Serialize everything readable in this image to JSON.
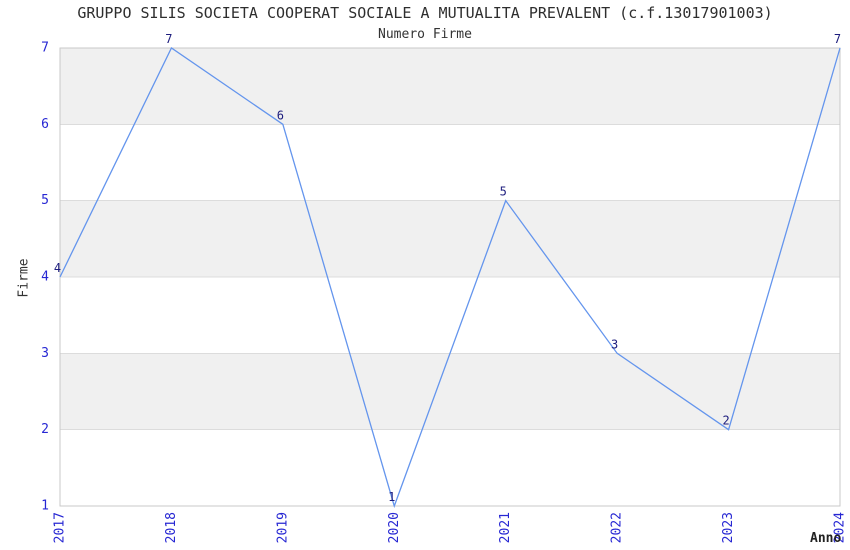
{
  "chart_data": {
    "type": "line",
    "title": "GRUPPO SILIS SOCIETA COOPERAT SOCIALE A MUTUALITA PREVALENT (c.f.13017901003)",
    "subtitle": "Numero Firme",
    "xlabel": "Anno",
    "ylabel": "Firme",
    "x": [
      "2017",
      "2018",
      "2019",
      "2020",
      "2021",
      "2022",
      "2023",
      "2024"
    ],
    "series": [
      {
        "name": "Numero Firme",
        "values": [
          4,
          7,
          6,
          1,
          5,
          3,
          2,
          7
        ]
      }
    ],
    "point_labels": [
      "4",
      "7",
      "6",
      "1",
      "5",
      "3",
      "2",
      "7"
    ],
    "ylim": [
      1,
      7
    ],
    "yticks": [
      1,
      2,
      3,
      4,
      5,
      6,
      7
    ],
    "grid": "horizontal",
    "background_bands": "alternating-gray-white",
    "legend": "none",
    "colors": {
      "line": "#6495ed",
      "band": "#f0f0f0",
      "band_alt": "#ffffff",
      "grid": "#dcdcdc",
      "spine": "#c9c9c9",
      "tick_label": "#2727d3",
      "point_label": "#1c1c7d",
      "text": "#333333"
    }
  }
}
